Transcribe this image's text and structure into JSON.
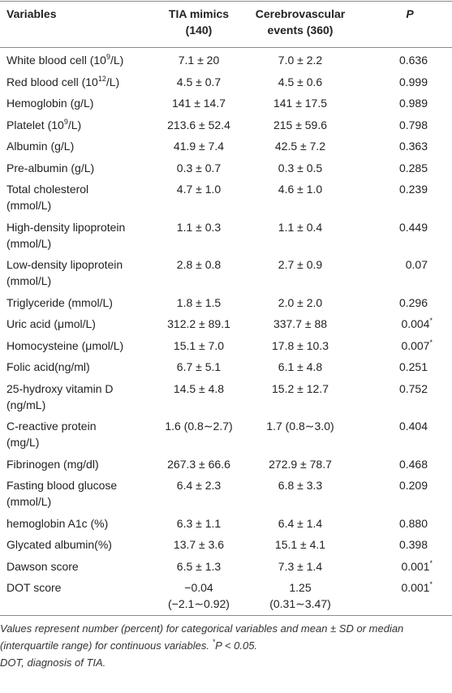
{
  "table": {
    "header": {
      "variable": "Variables",
      "group1": [
        "TIA mimics",
        "(140)"
      ],
      "group2": [
        "Cerebrovascular",
        "events (360)"
      ],
      "p": "P"
    },
    "rows": [
      {
        "label": "White blood cell (10",
        "sup": "9",
        "label_end": "/L)",
        "group1": "7.1 ± 20",
        "group2": "7.0 ± 2.2",
        "p": "0.636"
      },
      {
        "label": "Red blood cell (10",
        "sup": "12",
        "label_end": "/L)",
        "group1": "4.5 ± 0.7",
        "group2": "4.5 ± 0.6",
        "p": "0.999"
      },
      {
        "label": "Hemoglobin (g/L)",
        "group1": "141 ± 14.7",
        "group2": "141 ± 17.5",
        "p": "0.989"
      },
      {
        "label": "Platelet (10",
        "sup": "9",
        "label_end": "/L)",
        "group1": "213.6 ± 52.4",
        "group2": "215 ± 59.6",
        "p": "0.798"
      },
      {
        "label": "Albumin (g/L)",
        "group1": "41.9 ± 7.4",
        "group2": "42.5 ± 7.2",
        "p": "0.363"
      },
      {
        "label": "Pre-albumin (g/L)",
        "group1": "0.3 ± 0.7",
        "group2": "0.3 ± 0.5",
        "p": "0.285"
      },
      {
        "label": [
          "Total cholesterol",
          "(mmol/L)"
        ],
        "group1": "4.7 ± 1.0",
        "group2": "4.6 ± 1.0",
        "p": "0.239"
      },
      {
        "label": [
          "High-density lipoprotein",
          "(mmol/L)"
        ],
        "group1": "1.1 ± 0.3",
        "group2": "1.1 ± 0.4",
        "p": "0.449"
      },
      {
        "label": [
          "Low-density lipoprotein",
          "(mmol/L)"
        ],
        "group1": "2.8 ± 0.8",
        "group2": "2.7 ± 0.9",
        "p": "0.07"
      },
      {
        "label": "Triglyceride (mmol/L)",
        "group1": "1.8 ± 1.5",
        "group2": "2.0 ± 2.0",
        "p": "0.296"
      },
      {
        "label": "Uric acid (μmol/L)",
        "group1": "312.2 ± 89.1",
        "group2": "337.7 ± 88",
        "p": "0.004",
        "p_mark": "*"
      },
      {
        "label": "Homocysteine (μmol/L)",
        "group1": "15.1 ± 7.0",
        "group2": "17.8 ± 10.3",
        "p": "0.007",
        "p_mark": "*"
      },
      {
        "label": "Folic acid(ng/ml)",
        "group1": "6.7 ± 5.1",
        "group2": "6.1 ± 4.8",
        "p": "0.251"
      },
      {
        "label": [
          "25-hydroxy vitamin D",
          "(ng/mL)"
        ],
        "group1": "14.5 ± 4.8",
        "group2": "15.2 ± 12.7",
        "p": "0.752"
      },
      {
        "label": [
          "C-reactive protein",
          "(mg/L)"
        ],
        "group1": "1.6 (0.8∼2.7)",
        "group2": "1.7 (0.8∼3.0)",
        "p": "0.404"
      },
      {
        "label": "Fibrinogen (mg/dl)",
        "group1": "267.3 ± 66.6",
        "group2": "272.9 ± 78.7",
        "p": "0.468"
      },
      {
        "label": [
          "Fasting blood glucose",
          "(mmol/L)"
        ],
        "group1": "6.4 ± 2.3",
        "group2": "6.8 ± 3.3",
        "p": "0.209"
      },
      {
        "label": "hemoglobin A1c (%)",
        "group1": "6.3 ± 1.1",
        "group2": "6.4 ± 1.4",
        "p": "0.880"
      },
      {
        "label": "Glycated albumin(%)",
        "group1": "13.7 ± 3.6",
        "group2": "15.1 ± 4.1",
        "p": "0.398"
      },
      {
        "label": "Dawson score",
        "group1": "6.5 ± 1.3",
        "group2": "7.3 ± 1.4",
        "p": "0.001",
        "p_mark": "*"
      },
      {
        "label": "DOT score",
        "group1": [
          "−0.04",
          "(−2.1∼0.92)"
        ],
        "group2": [
          "1.25",
          "(0.31∼3.47)"
        ],
        "p": "0.001",
        "p_mark": "*"
      }
    ],
    "footnotes": [
      {
        "text": "Values represent number (percent) for categorical variables and mean ± SD or median (interquartile range) for continuous variables. ",
        "sup": "*",
        "italic_p": "P",
        "text_end": " < 0.05."
      },
      {
        "text": "DOT, diagnosis of TIA."
      }
    ]
  }
}
